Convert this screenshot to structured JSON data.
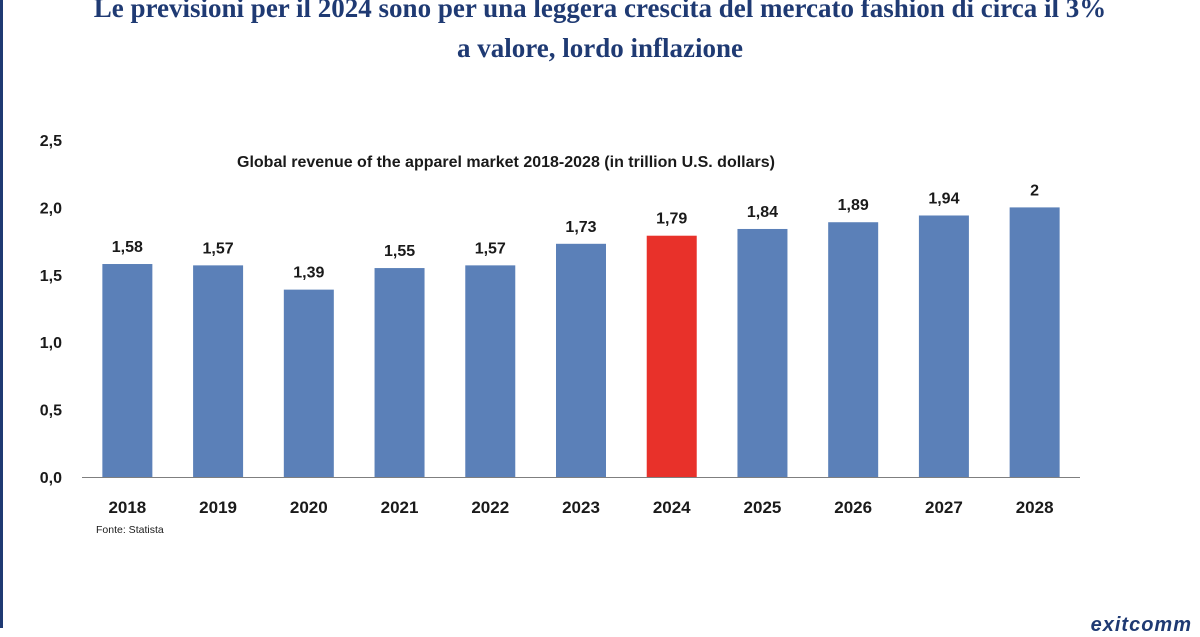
{
  "headline": {
    "line1": "Le previsioni per il 2024 sono per una leggera crescita del mercato fashion di circa il 3%",
    "line2": "a valore, lordo inflazione"
  },
  "chart_data": {
    "type": "bar",
    "title": "Global revenue of the apparel market 2018-2028 (in trillion U.S. dollars)",
    "categories": [
      "2018",
      "2019",
      "2020",
      "2021",
      "2022",
      "2023",
      "2024",
      "2025",
      "2026",
      "2027",
      "2028"
    ],
    "values": [
      1.58,
      1.57,
      1.39,
      1.55,
      1.57,
      1.73,
      1.79,
      1.84,
      1.89,
      1.94,
      2
    ],
    "data_labels": [
      "1,58",
      "1,57",
      "1,39",
      "1,55",
      "1,57",
      "1,73",
      "1,79",
      "1,84",
      "1,89",
      "1,94",
      "2"
    ],
    "y_ticks": [
      0,
      0.5,
      1,
      1.5,
      2,
      2.5
    ],
    "y_tick_labels": [
      "0,0",
      "0,5",
      "1,0",
      "1,5",
      "2,0",
      "2,5"
    ],
    "ylim": [
      0,
      2.5
    ],
    "xlabel": "",
    "ylabel": "",
    "grid": false,
    "legend": "none",
    "highlight_index": 6,
    "colors": {
      "bar": "#5b80b8",
      "highlight": "#e8312a",
      "text": "#1a1a1a",
      "axis": "#7f7f7f"
    },
    "source": "Fonte: Statista"
  },
  "brand": "exitcomm"
}
